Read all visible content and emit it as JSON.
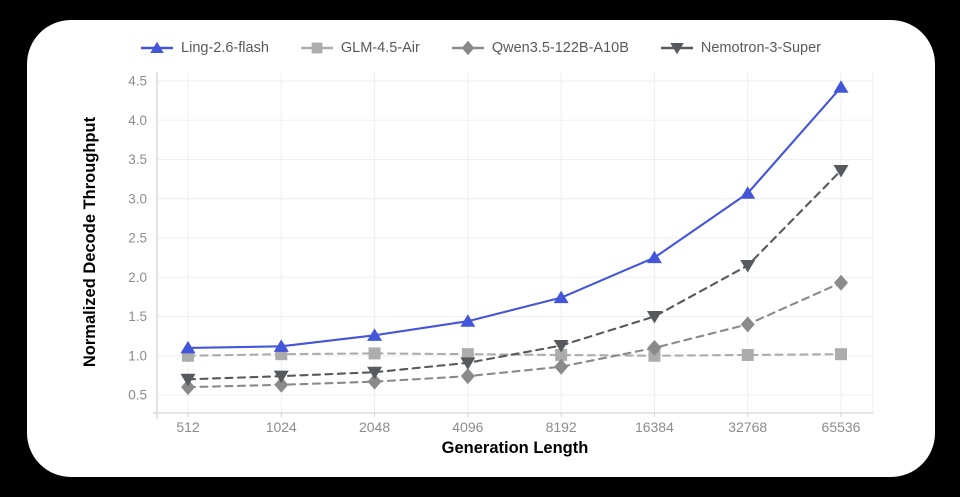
{
  "page": {
    "background_color": "#000000",
    "card_color": "#ffffff"
  },
  "chart_data": {
    "type": "line",
    "title": "",
    "xlabel": "Generation Length",
    "ylabel": "Normalized Decode Throughput",
    "categories": [
      "512",
      "1024",
      "2048",
      "4096",
      "8192",
      "16384",
      "32768",
      "65536"
    ],
    "y_ticks": [
      "0.5",
      "1.0",
      "1.5",
      "2.0",
      "2.5",
      "3.0",
      "3.5",
      "4.0",
      "4.5"
    ],
    "ylim": [
      0.27,
      4.62
    ],
    "x_scale": "log2-categorical",
    "grid": true,
    "legend_position": "top",
    "series": [
      {
        "name": "Ling-2.6-flash",
        "color": "#4355d9",
        "marker": "triangle-up",
        "line_style": "solid",
        "values": [
          1.1,
          1.12,
          1.26,
          1.44,
          1.74,
          2.25,
          3.07,
          4.42
        ]
      },
      {
        "name": "GLM-4.5-Air",
        "color": "#acacac",
        "marker": "square",
        "line_style": "dashed",
        "values": [
          1.0,
          1.02,
          1.03,
          1.02,
          1.01,
          1.0,
          1.01,
          1.02
        ]
      },
      {
        "name": "Qwen3.5-122B-A10B",
        "color": "#8a8a8a",
        "marker": "diamond",
        "line_style": "dashed",
        "values": [
          0.6,
          0.63,
          0.67,
          0.74,
          0.86,
          1.1,
          1.4,
          1.93
        ]
      },
      {
        "name": "Nemotron-3-Super",
        "color": "#56595e",
        "marker": "triangle-down",
        "line_style": "dashed",
        "values": [
          0.7,
          0.74,
          0.79,
          0.91,
          1.13,
          1.5,
          2.15,
          3.36
        ]
      }
    ],
    "styles": {
      "grid_color": "#efefef",
      "axis_color": "#d4d4d4",
      "tick_label_color": "#8c8c8c",
      "axis_title_color": "#595959",
      "legend_text_color": "#595959"
    }
  }
}
